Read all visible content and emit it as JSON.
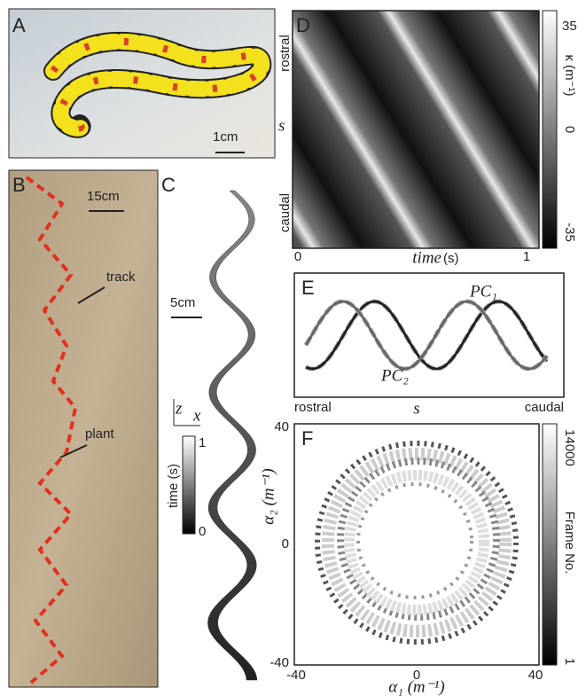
{
  "panels": {
    "A": {
      "label": "A",
      "scale_bar": "1cm"
    },
    "B": {
      "label": "B",
      "scale_bar": "15cm",
      "annotations": [
        "track",
        "plant"
      ]
    },
    "C": {
      "label": "C",
      "scale_bar": "5cm",
      "axes": [
        "z",
        "x"
      ],
      "colorbar": {
        "label": "time (s)",
        "ticks": [
          "1",
          "0"
        ]
      }
    },
    "D": {
      "label": "D",
      "y_labels": [
        "rostral",
        "s",
        "caudal"
      ],
      "x_label": "time",
      "x_unit": "(s)",
      "x_ticks": [
        "0",
        "1"
      ],
      "colorbar": {
        "label": "κ (m⁻¹)",
        "ticks": [
          "35",
          "0",
          "-35"
        ]
      }
    },
    "E": {
      "label": "E",
      "curves": [
        "PC₁",
        "PC₂"
      ],
      "x_labels": [
        "rostral",
        "s",
        "caudal"
      ]
    },
    "F": {
      "label": "F",
      "x_label": "α₁ (m⁻¹)",
      "y_label": "α₂ (m⁻¹)",
      "x_ticks": [
        "-40",
        "0",
        "40"
      ],
      "y_ticks": [
        "40",
        "0",
        "-40"
      ],
      "colorbar": {
        "label": "Frame No.",
        "ticks": [
          "14000",
          "1"
        ]
      }
    }
  }
}
